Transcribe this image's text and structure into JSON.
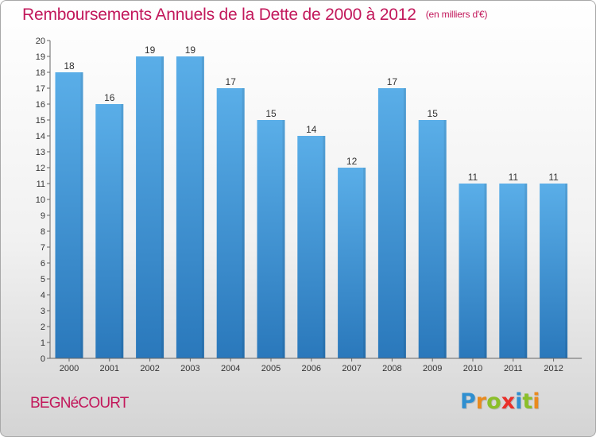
{
  "chart_data": {
    "type": "bar",
    "title": "Remboursements Annuels de la Dette de 2000 à 2012",
    "unit_note": "(en milliers d'€)",
    "categories": [
      "2000",
      "2001",
      "2002",
      "2003",
      "2004",
      "2005",
      "2006",
      "2007",
      "2008",
      "2009",
      "2010",
      "2011",
      "2012"
    ],
    "values": [
      18,
      16,
      19,
      19,
      17,
      15,
      14,
      12,
      17,
      15,
      11,
      11,
      11
    ],
    "ylim": [
      0,
      20
    ],
    "yticks": [
      0,
      1,
      2,
      3,
      4,
      5,
      6,
      7,
      8,
      9,
      10,
      11,
      12,
      13,
      14,
      15,
      16,
      17,
      18,
      19,
      20
    ],
    "grid": false,
    "bar_color": "#4a9ee0"
  },
  "commune": "BEGNéCOURT",
  "logo": {
    "letters": [
      "P",
      "r",
      "o",
      "x",
      "i",
      "t",
      "i"
    ],
    "colors": [
      "#2f8fd0",
      "#e98a1e",
      "#8bbf2a",
      "#e9302a",
      "#2f8fd0",
      "#8bbf2a",
      "#e98a1e"
    ]
  }
}
